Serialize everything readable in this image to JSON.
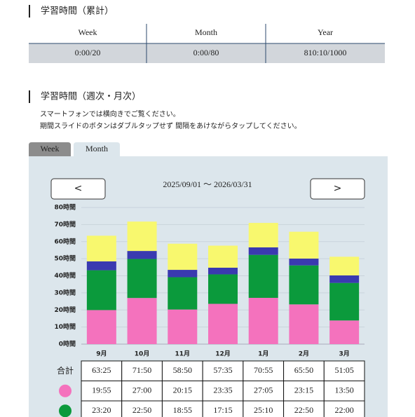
{
  "section1": {
    "title": "学習時間（累計）",
    "headers": [
      "Week",
      "Month",
      "Year"
    ],
    "values": [
      "0:00/20",
      "0:00/80",
      "810:10/1000"
    ]
  },
  "section2": {
    "title": "学習時間（週次・月次）",
    "notes": [
      "スマートフォンでは横向きでご覧ください。",
      "期間スライドのボタンはダブルタップせず 間隔をあけながらタップしてください。"
    ],
    "tabs": [
      "Week",
      "Month"
    ],
    "prev": "<",
    "next": ">",
    "date_range": "2025/09/01 〜 2026/03/31"
  },
  "chart_data": {
    "type": "bar",
    "stacked": true,
    "categories": [
      "9月",
      "10月",
      "11月",
      "12月",
      "1月",
      "2月",
      "3月"
    ],
    "series": [
      {
        "color": "#f472bd",
        "values": [
          19.92,
          27.0,
          20.25,
          23.58,
          27.08,
          23.25,
          13.83
        ]
      },
      {
        "color": "#0b9a3c",
        "values": [
          23.33,
          22.83,
          18.92,
          17.25,
          25.17,
          22.83,
          22.0
        ]
      },
      {
        "color": "#3a3ab0",
        "values": [
          5.2,
          4.7,
          4.3,
          3.9,
          4.4,
          4.0,
          4.4
        ]
      },
      {
        "color": "#f8f86e",
        "values": [
          15.0,
          17.2,
          15.3,
          12.9,
          14.3,
          15.7,
          10.9
        ]
      }
    ],
    "ylim": [
      0,
      80
    ],
    "yticks": [
      {
        "value": 0,
        "label": "0時間"
      },
      {
        "value": 10,
        "label": "10時間"
      },
      {
        "value": 20,
        "label": "20時間"
      },
      {
        "value": 30,
        "label": "30時間"
      },
      {
        "value": 40,
        "label": "40時間"
      },
      {
        "value": 50,
        "label": "50時間"
      },
      {
        "value": 60,
        "label": "60時間"
      },
      {
        "value": 70,
        "label": "70時間"
      },
      {
        "value": 80,
        "label": "80時間"
      }
    ],
    "grid": true
  },
  "summary_table": {
    "rows": [
      {
        "label": "合計",
        "cells": [
          "63:25",
          "71:50",
          "58:50",
          "57:35",
          "70:55",
          "65:50",
          "51:05"
        ]
      },
      {
        "cells": [
          "19:55",
          "27:00",
          "20:15",
          "23:35",
          "27:05",
          "23:15",
          "13:50"
        ]
      },
      {
        "cells": [
          "23:20",
          "22:50",
          "18:55",
          "17:15",
          "25:10",
          "22:50",
          "22:00"
        ]
      }
    ]
  }
}
